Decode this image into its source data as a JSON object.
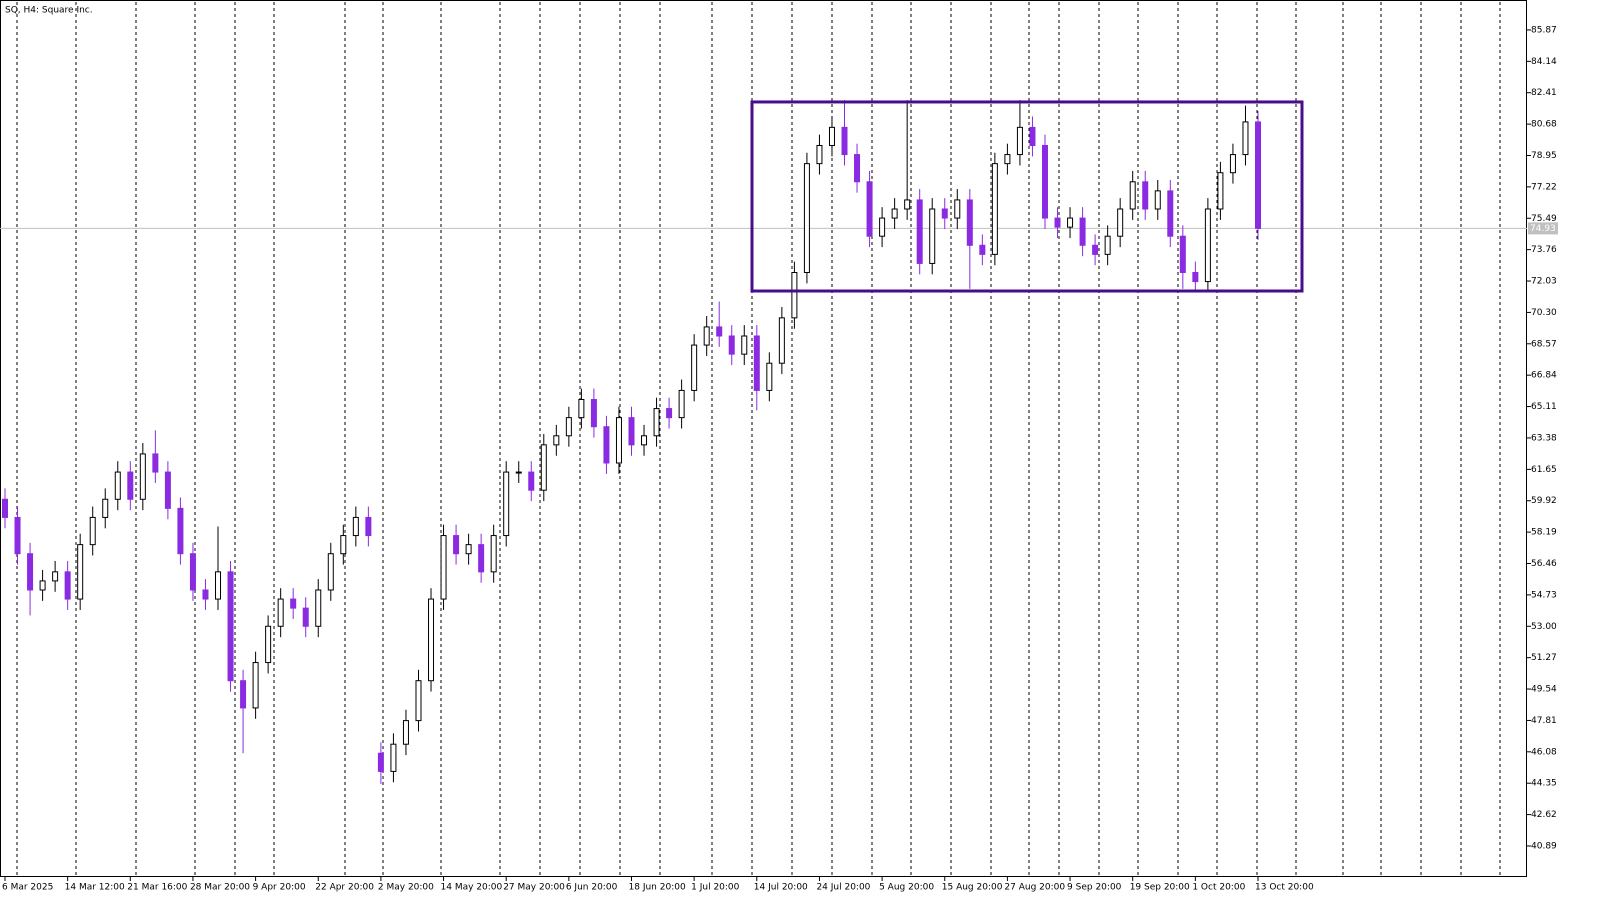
{
  "chart_data": {
    "type": "candlestick",
    "title": "SQ, H4:  Square Inc.",
    "categories": [
      "6 Mar 2025",
      null,
      null,
      null,
      null,
      "14 Mar 12:00",
      null,
      null,
      null,
      null,
      "21 Mar 16:00",
      null,
      null,
      null,
      null,
      "28 Mar 20:00",
      null,
      null,
      null,
      null,
      "9 Apr 20:00",
      null,
      null,
      null,
      null,
      "22 Apr 20:00",
      null,
      null,
      null,
      null,
      "2 May 20:00",
      null,
      null,
      null,
      null,
      "14 May 20:00",
      null,
      null,
      null,
      null,
      "27 May 20:00",
      null,
      null,
      null,
      null,
      "6 Jun 20:00",
      null,
      null,
      null,
      null,
      "18 Jun 20:00",
      null,
      null,
      null,
      null,
      "1 Jul 20:00",
      null,
      null,
      null,
      null,
      "14 Jul 20:00",
      null,
      null,
      null,
      null,
      "24 Jul 20:00",
      null,
      null,
      null,
      null,
      "5 Aug 20:00",
      null,
      null,
      null,
      null,
      "15 Aug 20:00",
      null,
      null,
      null,
      null,
      "27 Aug 20:00",
      null,
      null,
      null,
      null,
      "9 Sep 20:00",
      null,
      null,
      null,
      null,
      "19 Sep 20:00",
      null,
      null,
      null,
      null,
      "1 Oct 20:00",
      null,
      null,
      null,
      null,
      "13 Oct 20:00"
    ],
    "open": [
      60,
      59,
      57,
      55,
      55.5,
      56,
      54.5,
      57.5,
      59,
      60,
      61.5,
      60,
      62.5,
      61.5,
      59.5,
      57,
      55,
      54.5,
      56,
      50,
      48.5,
      51,
      53,
      54.5,
      54,
      53,
      55,
      57,
      58,
      59,
      46,
      45,
      46.5,
      47.8,
      50,
      54.5,
      58,
      57,
      57.5,
      56,
      58,
      61.5,
      61.5,
      60.5,
      63,
      63.5,
      64.5,
      65.5,
      64,
      62,
      64.5,
      63,
      63.5,
      65,
      64.5,
      66,
      68.5,
      69.5,
      69,
      68,
      69,
      66,
      67.5,
      70,
      72.5,
      78.5,
      79.5,
      80.5,
      79,
      77.5,
      74.5,
      75.5,
      76,
      76.5,
      73,
      76,
      75.5,
      76.5,
      74,
      73.5,
      78.5,
      79,
      80.5,
      79.5,
      75.5,
      75,
      75.5,
      74,
      73.5,
      74.5,
      76,
      77.5,
      76,
      77,
      74.5,
      72.5,
      72,
      76,
      78,
      79,
      80.8
    ],
    "high": [
      60.6,
      59.6,
      57.6,
      56.1,
      56.6,
      56.6,
      58.1,
      59.6,
      60.6,
      62.1,
      62.1,
      63.1,
      63.8,
      62.1,
      60.1,
      57.6,
      55.6,
      58.5,
      56.6,
      50.6,
      51.6,
      53.6,
      55.1,
      55.1,
      54.6,
      55.6,
      57.6,
      58.6,
      59.6,
      59.6,
      46.6,
      47.1,
      48.4,
      50.6,
      55.1,
      58.6,
      58.6,
      58.1,
      58.1,
      58.6,
      62.1,
      62.1,
      62.1,
      63.6,
      64.1,
      65.1,
      66.1,
      66.1,
      64.6,
      65.1,
      65.1,
      64.1,
      65.6,
      65.6,
      66.6,
      69.1,
      70.1,
      70.9,
      69.6,
      69.6,
      69.6,
      68.1,
      70.6,
      73.1,
      79.1,
      80.1,
      81.1,
      82,
      79.6,
      78.1,
      76.1,
      76.6,
      82,
      77.1,
      76.6,
      76.6,
      77.1,
      77.1,
      74.6,
      79.1,
      79.6,
      82,
      81.1,
      80.1,
      76.1,
      76.1,
      76.1,
      74.6,
      75.1,
      76.6,
      78.1,
      78.1,
      77.6,
      77.6,
      75.1,
      73.1,
      76.6,
      78.6,
      79.6,
      81.7,
      81.4
    ],
    "low": [
      58.4,
      56.4,
      53.6,
      54.4,
      54.9,
      53.9,
      53.9,
      56.9,
      58.4,
      59.4,
      59.4,
      59.4,
      60.9,
      58.9,
      56.4,
      54.4,
      53.9,
      53.9,
      49.4,
      46,
      47.9,
      50.4,
      52.4,
      53.4,
      52.4,
      52.4,
      54.4,
      56.4,
      57.4,
      57.4,
      44.3,
      44.4,
      45.9,
      47.2,
      49.4,
      53.9,
      56.4,
      56.4,
      55.4,
      55.4,
      57.4,
      60.9,
      59.9,
      59.9,
      62.4,
      62.9,
      63.9,
      63.4,
      61.4,
      61.4,
      62.4,
      62.4,
      62.9,
      63.9,
      63.9,
      65.4,
      67.9,
      68.4,
      67.4,
      67.4,
      64.9,
      65.4,
      66.9,
      69.4,
      71.9,
      77.9,
      78.9,
      78.4,
      76.9,
      73.9,
      73.9,
      74.9,
      75.4,
      72.4,
      72.4,
      74.9,
      74.9,
      71.6,
      72.9,
      72.9,
      77.9,
      78.4,
      78.9,
      74.9,
      74.4,
      74.4,
      73.4,
      72.9,
      72.9,
      73.9,
      75.4,
      75.4,
      75.4,
      73.9,
      71.6,
      71.4,
      71.4,
      75.4,
      77.4,
      78.4,
      74.3
    ],
    "close": [
      59,
      57,
      55,
      55.5,
      56,
      54.5,
      57.5,
      59,
      60,
      61.5,
      60,
      62.5,
      61.5,
      59.5,
      57,
      55,
      54.5,
      56,
      50,
      48.5,
      51,
      53,
      54.5,
      54,
      53,
      55,
      57,
      58,
      59,
      58,
      45,
      46.5,
      47.8,
      50,
      54.5,
      58,
      57,
      57.5,
      56,
      58,
      61.5,
      61.5,
      60.5,
      63,
      63.5,
      64.5,
      65.5,
      64,
      62,
      64.5,
      63,
      63.5,
      65,
      64.5,
      66,
      68.5,
      69.5,
      69,
      68,
      69,
      66,
      67.5,
      70,
      72.5,
      78.5,
      79.5,
      80.5,
      79,
      77.5,
      74.5,
      75.5,
      76,
      76.5,
      73,
      76,
      75.5,
      76.5,
      74,
      73.5,
      78.5,
      79,
      80.5,
      79.5,
      75.5,
      75,
      75.5,
      74,
      73.5,
      74.5,
      76,
      77.5,
      76,
      77,
      74.5,
      72.5,
      72,
      76,
      78,
      79,
      80.8,
      74.93
    ],
    "up_color": "#000000",
    "down_color": "#8a2be2",
    "last_price": 74.93,
    "annotation_box": {
      "top": 81.9,
      "bottom": 71.48,
      "color": "#4b0c8c"
    },
    "ylim": [
      39.18,
      87.41
    ],
    "yticks": [
      85.87,
      84.14,
      82.41,
      80.68,
      78.95,
      77.22,
      75.49,
      73.76,
      72.03,
      {
        "value": 70.3,
        "label": "70.30"
      },
      68.57,
      66.84,
      65.11,
      63.38,
      61.65,
      59.92,
      58.19,
      56.46,
      54.73,
      {
        "value": 53,
        "label": "53.00"
      },
      51.27,
      49.54,
      47.81,
      46.08,
      44.35,
      42.62,
      40.89
    ]
  }
}
